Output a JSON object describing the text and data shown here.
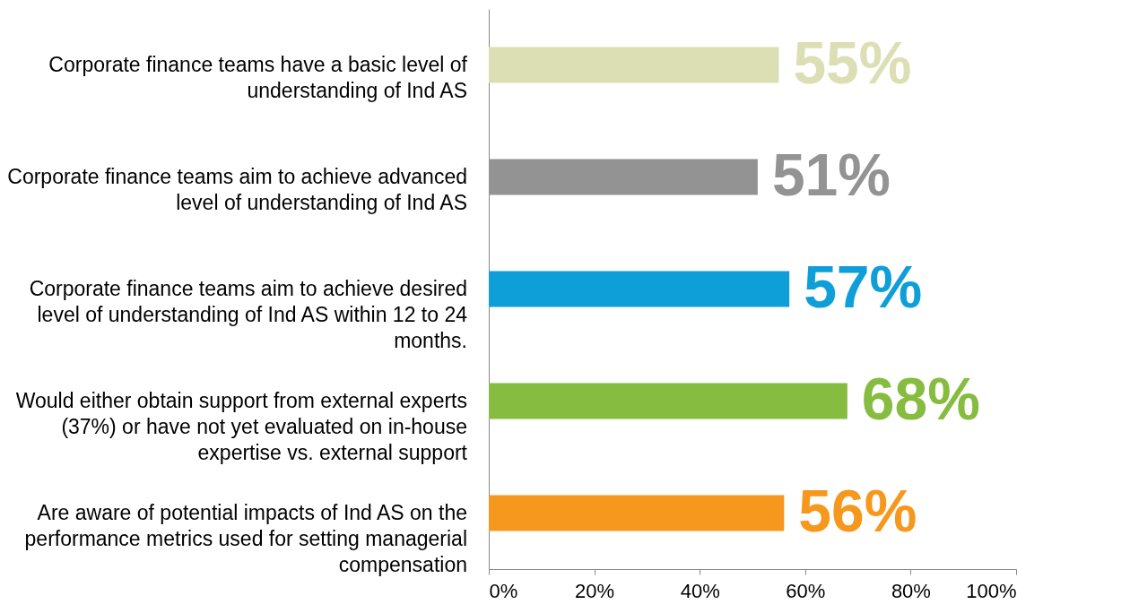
{
  "chart_data": {
    "type": "bar",
    "orientation": "horizontal",
    "categories": [
      "Corporate finance teams have a basic level of understanding of Ind AS",
      "Corporate finance teams aim to achieve advanced level of understanding of Ind AS",
      "Corporate finance teams aim to achieve desired level of understanding of Ind AS within 12 to 24 months.",
      "Would either obtain support from external experts (37%) or have not yet evaluated on in-house expertise vs. external support",
      "Are aware of potential impacts of Ind AS on the performance metrics used for setting managerial compensation"
    ],
    "values": [
      55,
      51,
      57,
      68,
      56
    ],
    "colors": [
      "#dcdfb4",
      "#939393",
      "#0e9fd8",
      "#86bc3f",
      "#f7981e"
    ],
    "value_labels": [
      "55%",
      "51%",
      "57%",
      "68%",
      "56%"
    ],
    "xlim": [
      0,
      100
    ],
    "xticks": [
      {
        "value": 0,
        "label": "0%"
      },
      {
        "value": 20,
        "label": "20%"
      },
      {
        "value": 40,
        "label": "40%"
      },
      {
        "value": 60,
        "label": "60%"
      },
      {
        "value": 80,
        "label": "80%"
      },
      {
        "value": 100,
        "label": "100%"
      }
    ],
    "grid": false,
    "legend": false
  }
}
